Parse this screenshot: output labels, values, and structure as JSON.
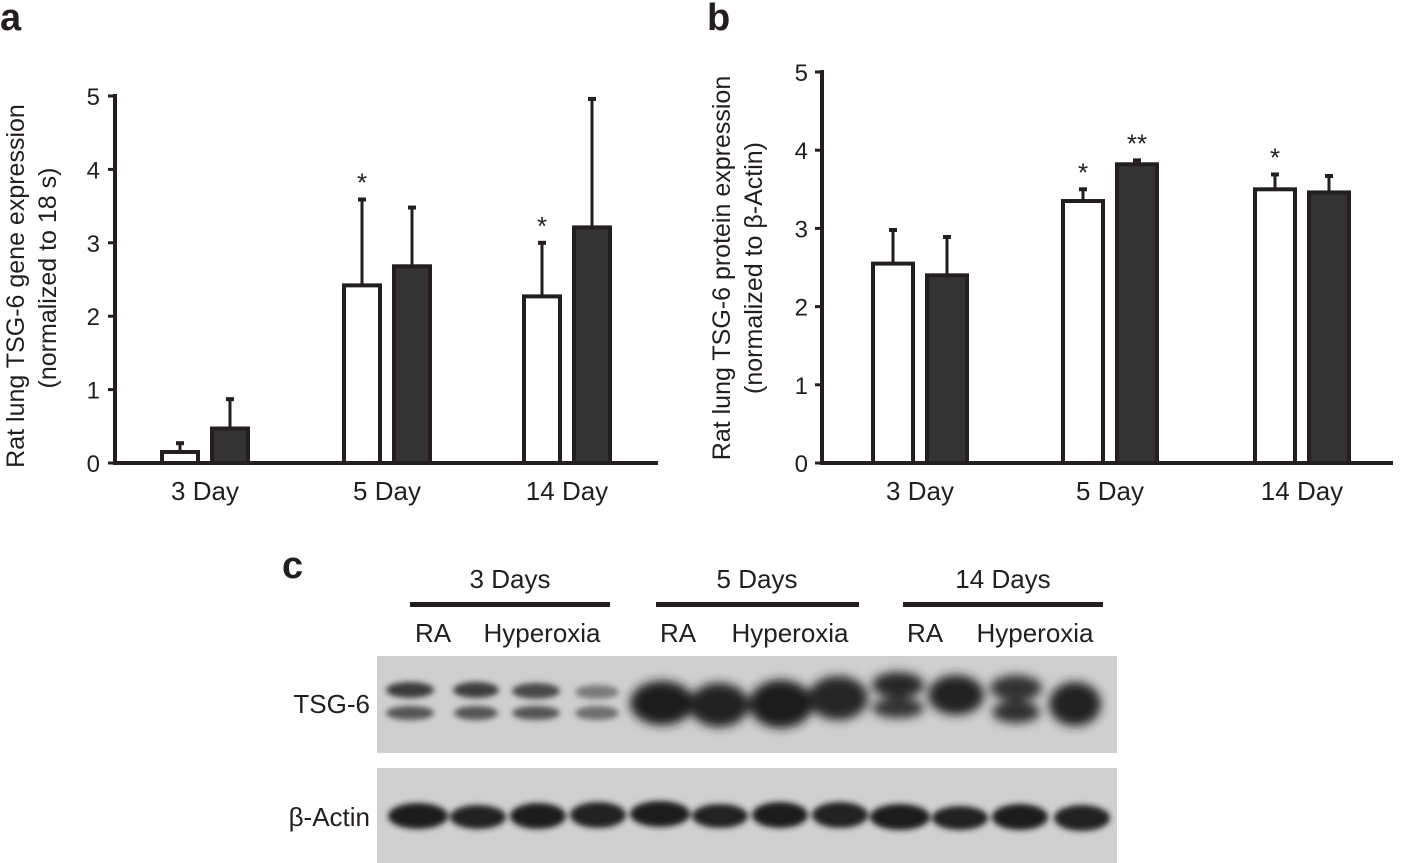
{
  "panels": {
    "a": "a",
    "b": "b",
    "c": "c"
  },
  "chart_data": [
    {
      "type": "bar",
      "panel": "a",
      "ylabel": "Rat lung TSG-6 gene expression",
      "ylabel2": "(normalized to 18 s)",
      "xlabel": "",
      "categories": [
        "3 Day",
        "5 Day",
        "14 Day"
      ],
      "ylim": [
        0,
        5
      ],
      "yticks": [
        "0",
        "1",
        "2",
        "3",
        "4",
        "5"
      ],
      "series": [
        {
          "fill": "#ffffff",
          "values": [
            0.15,
            2.42,
            2.27
          ],
          "errors": [
            0.12,
            1.17,
            0.73
          ],
          "stars": [
            "",
            "*",
            "*"
          ]
        },
        {
          "fill": "#333333",
          "values": [
            0.47,
            2.68,
            3.21
          ],
          "errors": [
            0.4,
            0.8,
            1.75
          ],
          "stars": [
            "",
            "",
            ""
          ]
        }
      ],
      "grid": false,
      "legend": "none"
    },
    {
      "type": "bar",
      "panel": "b",
      "ylabel": "Rat lung TSG-6 protein expression",
      "ylabel2": "(normalized to β-Actin)",
      "xlabel": "",
      "categories": [
        "3 Day",
        "5 Day",
        "14 Day"
      ],
      "ylim": [
        0,
        5
      ],
      "yticks": [
        "0",
        "1",
        "2",
        "3",
        "4",
        "5"
      ],
      "series": [
        {
          "fill": "#ffffff",
          "values": [
            2.55,
            3.35,
            3.5
          ],
          "errors": [
            0.43,
            0.15,
            0.19
          ],
          "stars": [
            "",
            "*",
            "*"
          ]
        },
        {
          "fill": "#333333",
          "values": [
            2.4,
            3.82,
            3.46
          ],
          "errors": [
            0.49,
            0.05,
            0.21
          ],
          "stars": [
            "",
            "**",
            ""
          ]
        }
      ],
      "grid": false,
      "legend": "none"
    }
  ],
  "blot": {
    "groups": [
      "3 Days",
      "5 Days",
      "14 Days"
    ],
    "conditions": [
      "RA",
      "Hyperoxia"
    ],
    "rows": [
      "TSG-6",
      "β-Actin"
    ]
  }
}
